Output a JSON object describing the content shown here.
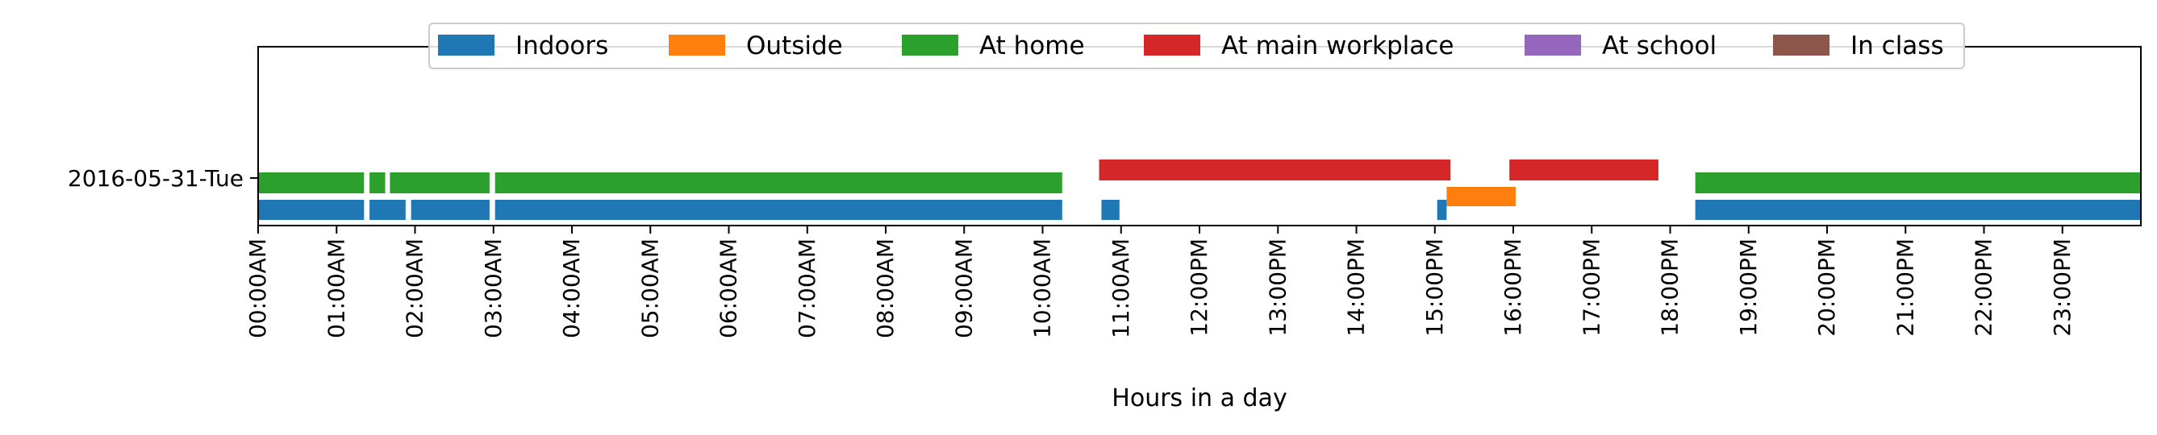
{
  "chart_data": {
    "type": "bar",
    "orientation": "horizontal-timeline",
    "xlabel": "Hours in a day",
    "x_tick_labels": [
      "00:00AM",
      "01:00AM",
      "02:00AM",
      "03:00AM",
      "04:00AM",
      "05:00AM",
      "06:00AM",
      "07:00AM",
      "08:00AM",
      "09:00AM",
      "10:00AM",
      "11:00AM",
      "12:00PM",
      "13:00PM",
      "14:00PM",
      "15:00PM",
      "16:00PM",
      "17:00PM",
      "18:00PM",
      "19:00PM",
      "20:00PM",
      "21:00PM",
      "22:00PM",
      "23:00PM"
    ],
    "xlim": [
      0,
      24
    ],
    "y_categories": [
      "2016-05-31-Tue"
    ],
    "legend_position": "top-center",
    "grid": false,
    "series": [
      {
        "name": "Indoors",
        "color": "#1f77b4",
        "intervals": [
          [
            0.0,
            1.35
          ],
          [
            1.42,
            1.88
          ],
          [
            1.95,
            2.95
          ],
          [
            3.02,
            10.25
          ],
          [
            10.75,
            10.98
          ],
          [
            15.03,
            15.15
          ],
          [
            18.32,
            24.0
          ]
        ]
      },
      {
        "name": "Outside",
        "color": "#ff7f0e",
        "intervals": [
          [
            15.15,
            16.03
          ]
        ]
      },
      {
        "name": "At home",
        "color": "#2ca02c",
        "intervals": [
          [
            0.0,
            1.35
          ],
          [
            1.42,
            1.62
          ],
          [
            1.68,
            2.95
          ],
          [
            3.02,
            10.25
          ],
          [
            18.32,
            24.0
          ]
        ]
      },
      {
        "name": "At main workplace",
        "color": "#d62728",
        "intervals": [
          [
            10.72,
            15.2
          ],
          [
            15.95,
            17.85
          ]
        ]
      },
      {
        "name": "At school",
        "color": "#9467bd",
        "intervals": []
      },
      {
        "name": "In class",
        "color": "#8c564b",
        "intervals": []
      }
    ]
  }
}
